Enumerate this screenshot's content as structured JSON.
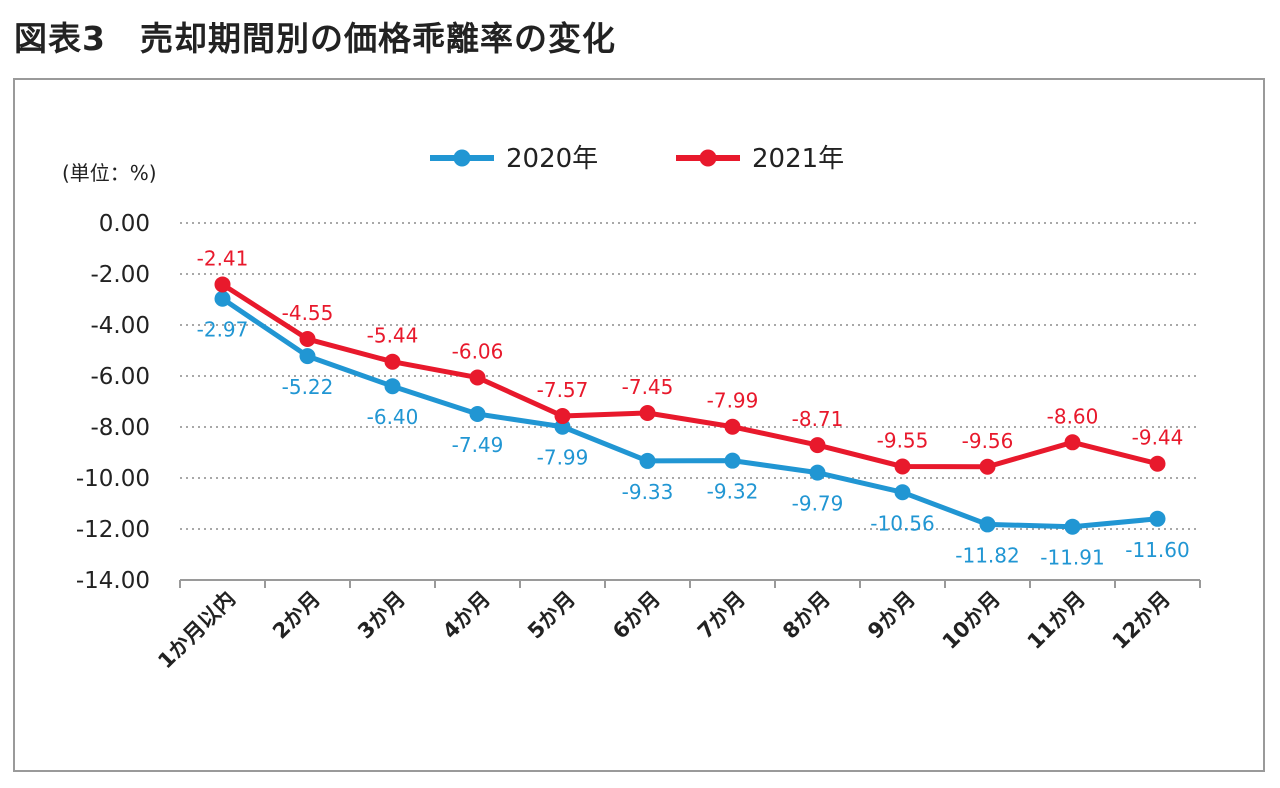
{
  "figure": {
    "title": "図表3　売却期間別の価格乖離率の変化"
  },
  "chart_data": {
    "type": "line",
    "title": "図表3　売却期間別の価格乖離率の変化",
    "unit_label": "(単位：%)",
    "categories": [
      "1か月以内",
      "2か月",
      "3か月",
      "4か月",
      "5か月",
      "6か月",
      "7か月",
      "8か月",
      "9か月",
      "10か月",
      "11か月",
      "12か月"
    ],
    "ylim": [
      -14,
      0
    ],
    "yticks": [
      "0.00",
      "-2.00",
      "-4.00",
      "-6.00",
      "-8.00",
      "-10.00",
      "-12.00",
      "-14.00"
    ],
    "grid": "dotted horizontal",
    "legend_position": "top-center",
    "series": [
      {
        "name": "2020年",
        "color": "#2196d3",
        "values": [
          -2.97,
          -5.22,
          -6.4,
          -7.49,
          -7.99,
          -9.33,
          -9.32,
          -9.79,
          -10.56,
          -11.82,
          -11.91,
          -11.6
        ],
        "labels": [
          "-2.97",
          "-5.22",
          "-6.40",
          "-7.49",
          "-7.99",
          "-9.33",
          "-9.32",
          "-9.79",
          "-10.56",
          "-11.82",
          "-11.91",
          "-11.60"
        ]
      },
      {
        "name": "2021年",
        "color": "#e8192c",
        "values": [
          -2.41,
          -4.55,
          -5.44,
          -6.06,
          -7.57,
          -7.45,
          -7.99,
          -8.71,
          -9.55,
          -9.56,
          -8.6,
          -9.44
        ],
        "labels": [
          "-2.41",
          "-4.55",
          "-5.44",
          "-6.06",
          "-7.57",
          "-7.45",
          "-7.99",
          "-8.71",
          "-9.55",
          "-9.56",
          "-8.60",
          "-9.44"
        ]
      }
    ]
  }
}
